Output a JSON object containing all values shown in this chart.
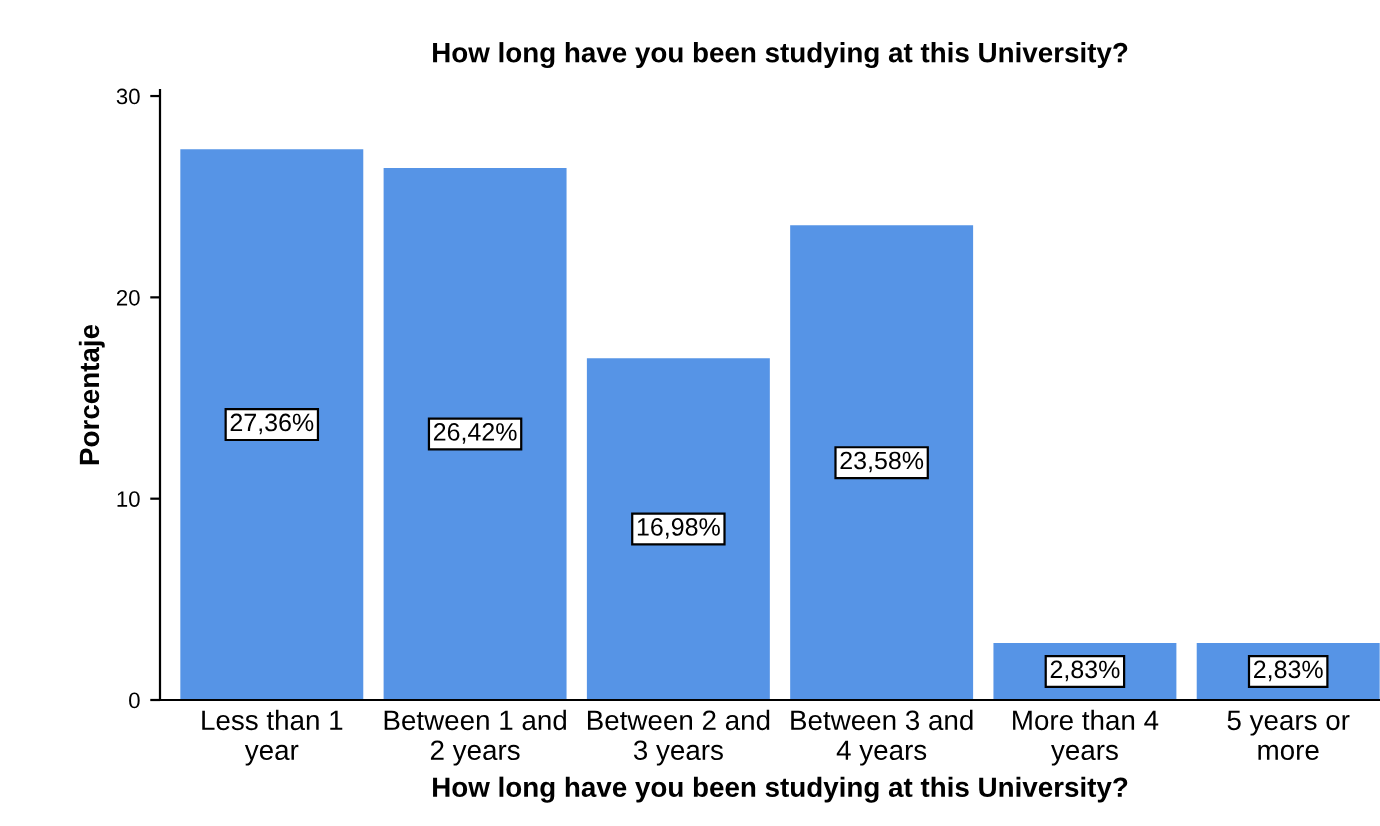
{
  "chart_data": {
    "type": "bar",
    "title": "How long have you been studying at this University?",
    "xlabel": "How long have you been studying at this University?",
    "ylabel": "Porcentaje",
    "categories": [
      "Less than 1\nyear",
      "Between 1 and\n2 years",
      "Between 2 and\n3 years",
      "Between 3 and\n4 years",
      "More than 4\nyears",
      "5 years or\nmore"
    ],
    "values": [
      27.36,
      26.42,
      16.98,
      23.58,
      2.83,
      2.83
    ],
    "value_labels": [
      "27,36%",
      "26,42%",
      "16,98%",
      "23,58%",
      "2,83%",
      "2,83%"
    ],
    "color": "#5694e6",
    "ylim": [
      0,
      30.3
    ],
    "yticks": [
      0,
      10,
      20,
      30
    ],
    "grid": false,
    "legend": false
  }
}
